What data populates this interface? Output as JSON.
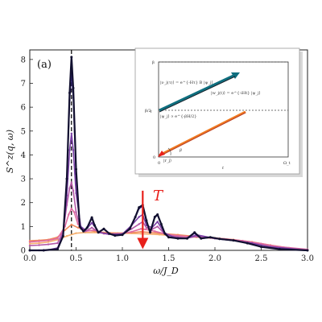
{
  "chart_data": [
    {
      "type": "line",
      "panel_label": "(a)",
      "xlabel": "ω/J_D",
      "ylabel": "S^z(q, ω)",
      "xlim": [
        0.0,
        3.0
      ],
      "ylim": [
        0,
        8.4
      ],
      "xticks": [
        "0.0",
        "0.5",
        "1.0",
        "1.5",
        "2.0",
        "2.5",
        "3.0"
      ],
      "yticks": [
        "0",
        "1",
        "2",
        "3",
        "4",
        "5",
        "6",
        "7",
        "8"
      ],
      "grid": false,
      "annotations": [
        {
          "text": "T",
          "kind": "downward-arrow",
          "x": 1.22,
          "y_from": 2.5,
          "y_to": 0.05,
          "color": "#e8201b"
        },
        {
          "text": "",
          "kind": "dashed-vertical-line",
          "x": 0.45
        }
      ],
      "series": [
        {
          "color": "#121030",
          "x": [
            0.0,
            0.15,
            0.3,
            0.36,
            0.4,
            0.43,
            0.45,
            0.47,
            0.5,
            0.54,
            0.58,
            0.62,
            0.67,
            0.7,
            0.74,
            0.8,
            0.86,
            0.92,
            1.0,
            1.08,
            1.14,
            1.18,
            1.22,
            1.26,
            1.3,
            1.35,
            1.38,
            1.42,
            1.46,
            1.5,
            1.6,
            1.7,
            1.78,
            1.85,
            1.95,
            2.05,
            2.2,
            2.35,
            2.5,
            2.7,
            3.0
          ],
          "y": [
            0.0,
            0.0,
            0.05,
            0.6,
            3.0,
            6.6,
            8.1,
            6.8,
            3.4,
            1.0,
            0.8,
            0.95,
            1.38,
            1.05,
            0.75,
            0.9,
            0.7,
            0.62,
            0.65,
            0.9,
            1.4,
            1.8,
            1.9,
            1.25,
            0.75,
            1.4,
            1.5,
            1.1,
            0.7,
            0.55,
            0.5,
            0.5,
            0.75,
            0.5,
            0.55,
            0.48,
            0.42,
            0.3,
            0.15,
            0.05,
            0.0
          ]
        },
        {
          "color": "#3d2a8e",
          "x": [
            0.0,
            0.15,
            0.3,
            0.36,
            0.4,
            0.43,
            0.45,
            0.47,
            0.5,
            0.54,
            0.58,
            0.62,
            0.67,
            0.7,
            0.74,
            0.8,
            0.86,
            0.92,
            1.0,
            1.08,
            1.14,
            1.18,
            1.22,
            1.26,
            1.3,
            1.35,
            1.38,
            1.42,
            1.46,
            1.5,
            1.6,
            1.7,
            1.78,
            1.85,
            1.95,
            2.05,
            2.2,
            2.35,
            2.5,
            2.7,
            3.0
          ],
          "y": [
            0.0,
            0.0,
            0.06,
            0.6,
            2.9,
            6.3,
            7.5,
            6.4,
            3.2,
            1.0,
            0.8,
            0.95,
            1.36,
            1.05,
            0.75,
            0.9,
            0.7,
            0.63,
            0.66,
            0.9,
            1.38,
            1.75,
            1.85,
            1.22,
            0.76,
            1.38,
            1.48,
            1.08,
            0.7,
            0.56,
            0.5,
            0.5,
            0.72,
            0.5,
            0.54,
            0.47,
            0.41,
            0.3,
            0.15,
            0.05,
            0.0
          ]
        },
        {
          "color": "#7a3fa6",
          "x": [
            0.0,
            0.1,
            0.2,
            0.3,
            0.36,
            0.4,
            0.43,
            0.45,
            0.47,
            0.5,
            0.55,
            0.6,
            0.67,
            0.75,
            0.85,
            1.0,
            1.1,
            1.18,
            1.22,
            1.26,
            1.32,
            1.38,
            1.45,
            1.55,
            1.7,
            1.8,
            2.0,
            2.2,
            2.4,
            2.6,
            3.0
          ],
          "y": [
            0.0,
            0.0,
            0.02,
            0.1,
            0.7,
            2.3,
            4.2,
            4.9,
            4.2,
            2.4,
            1.0,
            0.85,
            1.15,
            0.75,
            0.68,
            0.68,
            1.05,
            1.4,
            1.5,
            1.05,
            0.95,
            1.2,
            0.75,
            0.55,
            0.5,
            0.65,
            0.5,
            0.42,
            0.3,
            0.15,
            0.0
          ]
        },
        {
          "color": "#b45aa8",
          "x": [
            0.0,
            0.1,
            0.2,
            0.3,
            0.36,
            0.4,
            0.43,
            0.45,
            0.47,
            0.5,
            0.55,
            0.6,
            0.67,
            0.75,
            0.85,
            1.0,
            1.1,
            1.18,
            1.22,
            1.26,
            1.32,
            1.38,
            1.45,
            1.55,
            1.7,
            1.8,
            2.0,
            2.2,
            2.4,
            2.6,
            3.0
          ],
          "y": [
            0.2,
            0.22,
            0.25,
            0.3,
            0.8,
            1.9,
            2.6,
            2.85,
            2.5,
            1.6,
            0.9,
            0.8,
            0.95,
            0.75,
            0.68,
            0.7,
            0.9,
            1.1,
            1.2,
            0.95,
            0.88,
            1.0,
            0.72,
            0.58,
            0.52,
            0.58,
            0.5,
            0.42,
            0.3,
            0.15,
            0.02
          ]
        },
        {
          "color": "#de6aa0",
          "x": [
            0.0,
            0.1,
            0.2,
            0.3,
            0.38,
            0.42,
            0.45,
            0.48,
            0.52,
            0.6,
            0.7,
            0.8,
            0.95,
            1.1,
            1.2,
            1.25,
            1.35,
            1.5,
            1.7,
            1.9,
            2.1,
            2.3,
            2.5,
            2.7,
            3.0
          ],
          "y": [
            0.35,
            0.38,
            0.42,
            0.5,
            1.0,
            1.5,
            1.75,
            1.6,
            1.1,
            0.8,
            0.85,
            0.7,
            0.68,
            0.78,
            0.9,
            0.88,
            0.8,
            0.65,
            0.58,
            0.55,
            0.48,
            0.4,
            0.28,
            0.15,
            0.04
          ]
        },
        {
          "color": "#f08a5d",
          "x": [
            0.0,
            0.1,
            0.2,
            0.3,
            0.38,
            0.45,
            0.52,
            0.6,
            0.7,
            0.8,
            0.95,
            1.1,
            1.2,
            1.3,
            1.45,
            1.6,
            1.8,
            2.0,
            2.2,
            2.4,
            2.6,
            2.8,
            3.0
          ],
          "y": [
            0.4,
            0.42,
            0.45,
            0.55,
            0.85,
            1.08,
            0.95,
            0.85,
            0.8,
            0.75,
            0.72,
            0.74,
            0.78,
            0.75,
            0.7,
            0.65,
            0.58,
            0.52,
            0.45,
            0.35,
            0.22,
            0.1,
            0.03
          ]
        },
        {
          "color": "#f5b070",
          "x": [
            0.0,
            0.1,
            0.2,
            0.3,
            0.4,
            0.5,
            0.6,
            0.8,
            1.0,
            1.2,
            1.4,
            1.6,
            1.8,
            2.0,
            2.2,
            2.4,
            2.6,
            2.8,
            3.0
          ],
          "y": [
            0.28,
            0.3,
            0.35,
            0.45,
            0.6,
            0.72,
            0.75,
            0.74,
            0.72,
            0.7,
            0.66,
            0.6,
            0.55,
            0.5,
            0.42,
            0.32,
            0.2,
            0.1,
            0.03
          ]
        }
      ]
    },
    {
      "type": "line",
      "role": "inset",
      "xlabel": "t",
      "ylabel": "τ",
      "xticks": [
        "0",
        "Ω_t"
      ],
      "yticks": [
        "0",
        "β/2",
        "β"
      ],
      "annotations": [
        "|ν_j(τ)⟩ = e^{-Hτ} B |ψ_j⟩",
        "|w_j(t)⟩ = e^{-iHt} |ψ_j⟩",
        "|ψ_j⟩ ∝ e^{-βH/2}",
        "|r_j⟩",
        "β"
      ],
      "colors": {
        "upper_arrow": "#0f6f7f",
        "lower_arrow": "#f07a1e",
        "curve": "#e8201b"
      }
    }
  ]
}
